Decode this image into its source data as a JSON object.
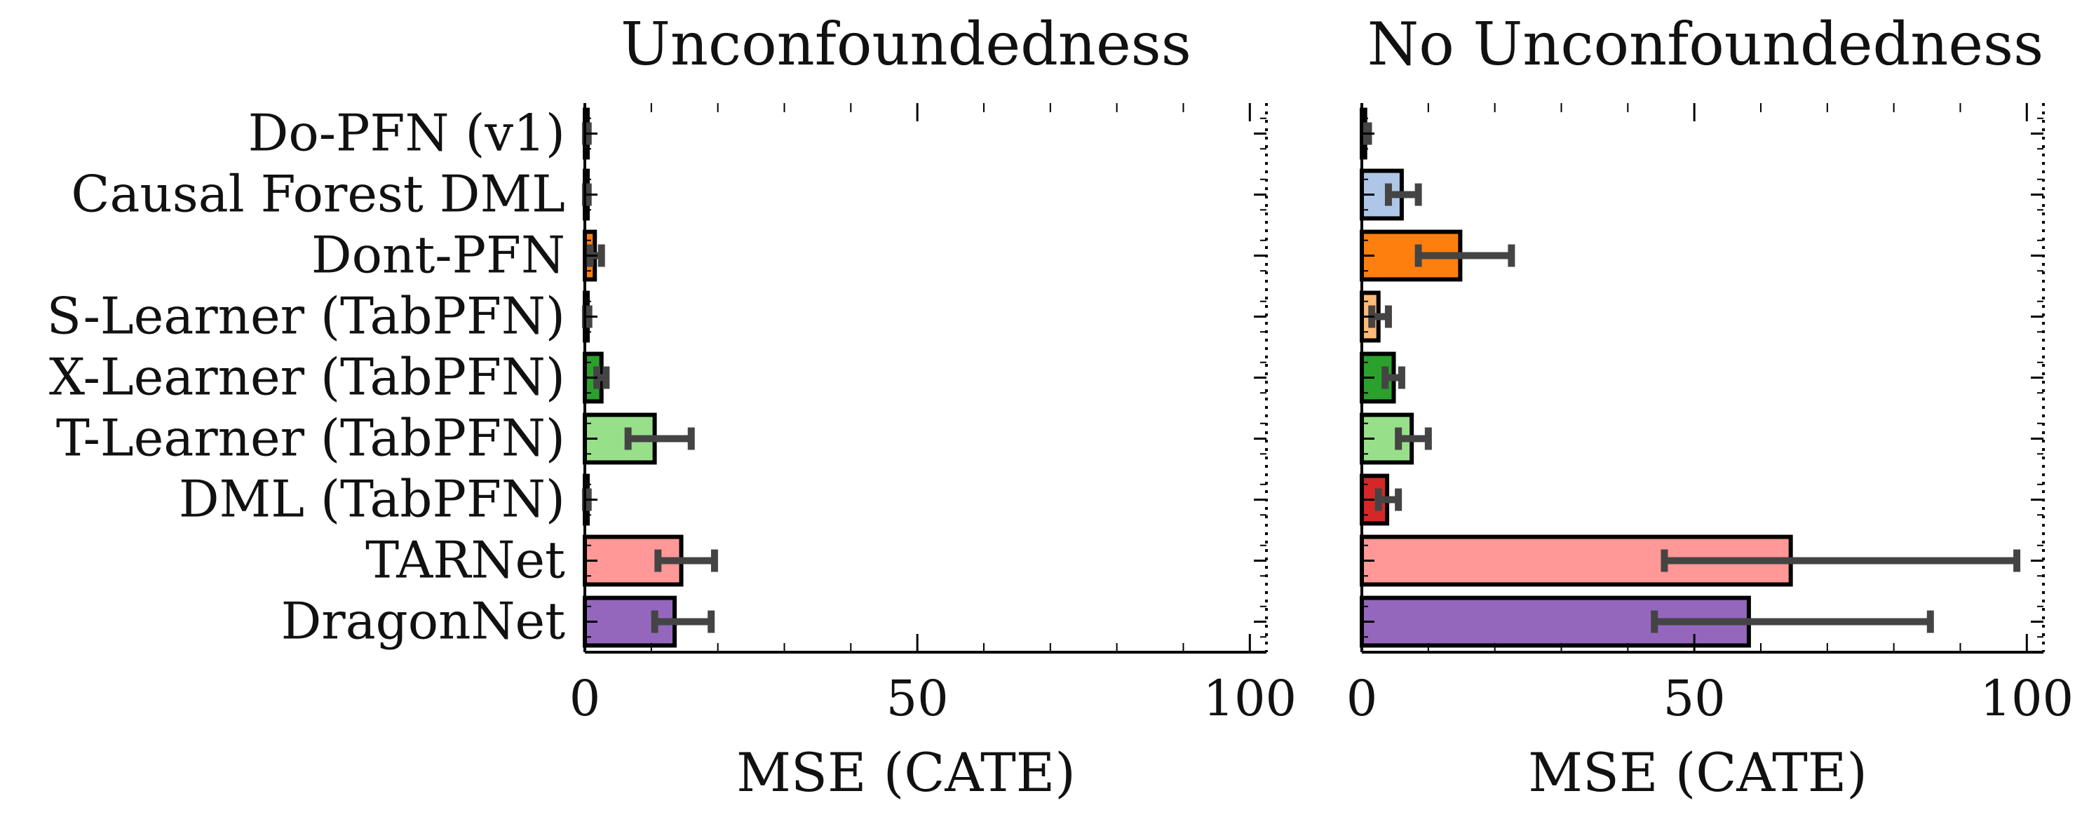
{
  "chart_data": [
    {
      "type": "bar",
      "orientation": "horizontal",
      "title": "Unconfoundedness",
      "xlabel": "MSE (CATE)",
      "ylabel": "",
      "xlim": [
        0,
        100
      ],
      "xticks": [
        "0",
        "50",
        "100"
      ],
      "xtick_values": [
        0,
        50,
        100
      ],
      "categories": [
        "Do-PFN (v1)",
        "Causal Forest DML",
        "Dont-PFN",
        "S-Learner (TabPFN)",
        "X-Learner (TabPFN)",
        "T-Learner (TabPFN)",
        "DML (TabPFN)",
        "TARNet",
        "DragonNet"
      ],
      "values": [
        0.3,
        0.3,
        1.5,
        0.3,
        2.5,
        10.5,
        0.3,
        14.5,
        13.5
      ],
      "errors": [
        [
          0.1,
          0.5
        ],
        [
          0.1,
          0.5
        ],
        [
          0.8,
          2.5
        ],
        [
          0.1,
          0.6
        ],
        [
          1.8,
          3.2
        ],
        [
          6.5,
          16.0
        ],
        [
          0.1,
          0.5
        ],
        [
          11.0,
          19.5
        ],
        [
          10.5,
          19.0
        ]
      ],
      "colors": [
        "#1f77b4",
        "#aec7e8",
        "#ff7f0e",
        "#ffbb78",
        "#2ca02c",
        "#98df8a",
        "#d62728",
        "#ff9896",
        "#9467bd"
      ],
      "grid": false,
      "legend": "none"
    },
    {
      "type": "bar",
      "orientation": "horizontal",
      "title": "No Unconfoundedness",
      "xlabel": "MSE (CATE)",
      "ylabel": "",
      "xlim": [
        0,
        100
      ],
      "xticks": [
        "0",
        "50",
        "100"
      ],
      "xtick_values": [
        0,
        50,
        100
      ],
      "categories": [
        "Do-PFN (v1)",
        "Causal Forest DML",
        "Dont-PFN",
        "S-Learner (TabPFN)",
        "X-Learner (TabPFN)",
        "T-Learner (TabPFN)",
        "DML (TabPFN)",
        "TARNet",
        "DragonNet"
      ],
      "values": [
        0.5,
        6.0,
        14.8,
        2.5,
        4.8,
        7.5,
        3.8,
        64.5,
        58.2
      ],
      "errors": [
        [
          0.3,
          1.0
        ],
        [
          4.0,
          8.5
        ],
        [
          8.5,
          22.5
        ],
        [
          1.5,
          4.0
        ],
        [
          3.5,
          6.0
        ],
        [
          5.5,
          10.0
        ],
        [
          2.5,
          5.5
        ],
        [
          45.5,
          98.5
        ],
        [
          44.0,
          85.5
        ]
      ],
      "colors": [
        "#1f77b4",
        "#aec7e8",
        "#ff7f0e",
        "#ffbb78",
        "#2ca02c",
        "#98df8a",
        "#d62728",
        "#ff9896",
        "#9467bd"
      ],
      "grid": false,
      "legend": "none"
    }
  ]
}
